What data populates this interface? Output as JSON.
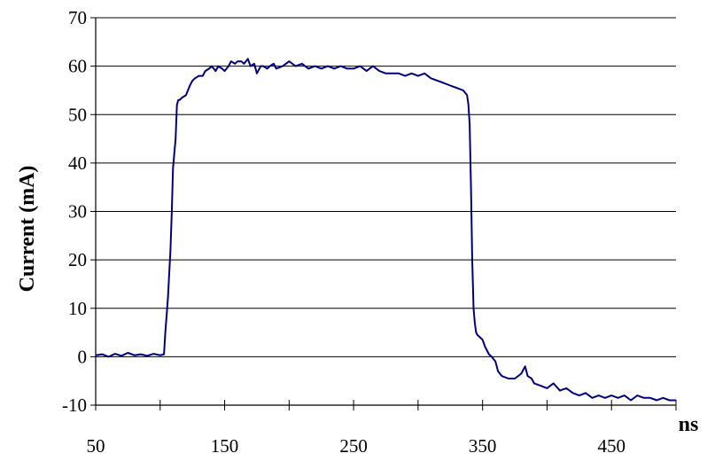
{
  "chart_data": {
    "type": "line",
    "title": "",
    "xlabel": "ns",
    "ylabel": "Current (mA)",
    "xlim": [
      50,
      500
    ],
    "ylim": [
      -10,
      70
    ],
    "x_ticks": [
      "50",
      "150",
      "250",
      "350",
      "450"
    ],
    "y_ticks": [
      "-10",
      "0",
      "10",
      "20",
      "30",
      "40",
      "50",
      "60",
      "70"
    ],
    "grid": "horizontal",
    "legend": "none",
    "series": [
      {
        "color": "#00007f",
        "x": [
          50,
          55,
          60,
          65,
          70,
          75,
          80,
          85,
          90,
          95,
          100,
          103,
          104,
          106,
          108,
          109,
          110,
          112,
          113,
          114,
          115,
          117,
          120,
          123,
          125,
          127,
          130,
          133,
          135,
          138,
          140,
          143,
          145,
          148,
          150,
          153,
          155,
          158,
          160,
          163,
          165,
          168,
          170,
          173,
          175,
          178,
          180,
          183,
          185,
          188,
          190,
          195,
          200,
          205,
          210,
          215,
          220,
          225,
          230,
          235,
          240,
          245,
          250,
          255,
          260,
          265,
          270,
          275,
          280,
          285,
          290,
          295,
          300,
          305,
          310,
          315,
          320,
          325,
          330,
          335,
          338,
          339,
          340,
          341,
          342,
          343,
          344,
          345,
          346,
          348,
          350,
          352,
          355,
          357,
          360,
          362,
          365,
          370,
          375,
          380,
          383,
          385,
          388,
          390,
          395,
          400,
          405,
          410,
          415,
          420,
          425,
          430,
          435,
          440,
          445,
          450,
          455,
          460,
          465,
          470,
          475,
          480,
          485,
          490,
          495,
          500
        ],
        "y": [
          0.3,
          0.5,
          0.0,
          0.6,
          0.2,
          0.8,
          0.3,
          0.5,
          0.2,
          0.6,
          0.3,
          0.5,
          5,
          12,
          22,
          30,
          39,
          45,
          52,
          53,
          53,
          53.5,
          54,
          56,
          57,
          57.5,
          58,
          58,
          59,
          59.5,
          60,
          59,
          60,
          59.5,
          59,
          60,
          61,
          60.5,
          61,
          61,
          60.5,
          61.5,
          60,
          60.5,
          58.5,
          60,
          60,
          59.5,
          60,
          60.5,
          59.5,
          60,
          61,
          60,
          60.5,
          59.5,
          60,
          59.5,
          60,
          59.5,
          60,
          59.5,
          59.5,
          60,
          59,
          60,
          59,
          58.5,
          58.5,
          58.5,
          58,
          58.5,
          58,
          58.5,
          57.5,
          57,
          56.5,
          56,
          55.5,
          55,
          54,
          52,
          48,
          35,
          20,
          10,
          7,
          5,
          4.5,
          4,
          3.5,
          2,
          0.5,
          0,
          -1,
          -3,
          -4,
          -4.5,
          -4.5,
          -3.5,
          -2,
          -4,
          -4.5,
          -5.5,
          -6,
          -6.5,
          -5.5,
          -7,
          -6.5,
          -7.5,
          -8,
          -7.5,
          -8.5,
          -8,
          -8.5,
          -8,
          -8.5,
          -8,
          -9,
          -8,
          -8.5,
          -8.5,
          -9,
          -8.5,
          -9,
          -9
        ]
      }
    ]
  }
}
